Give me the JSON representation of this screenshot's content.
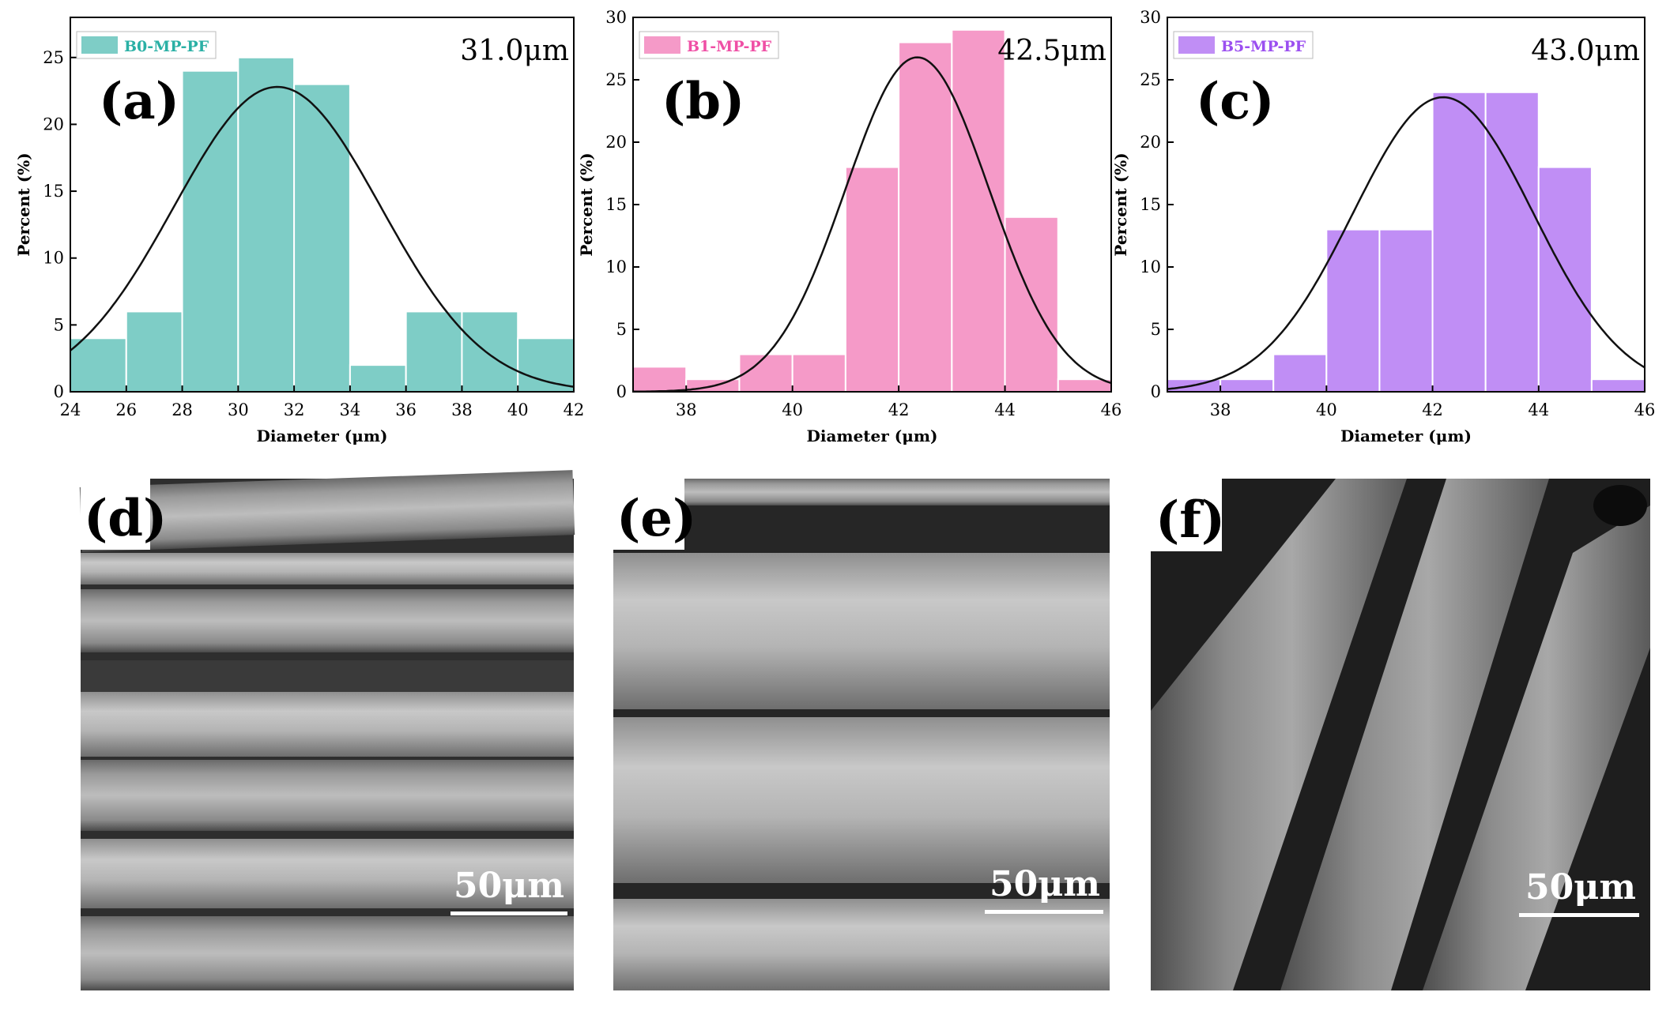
{
  "chart_data": [
    {
      "type": "bar",
      "panel": "(a)",
      "legend": "B0-MP-PF",
      "mean_label": "31.0μm",
      "color": "#7ecdc6",
      "legend_text_color": "#2ab0a5",
      "xlabel": "Diameter (μm)",
      "ylabel": "Percent (%)",
      "xlim": [
        24,
        42
      ],
      "ylim": [
        0,
        28
      ],
      "xticks": [
        24,
        26,
        28,
        30,
        32,
        34,
        36,
        38,
        40,
        42
      ],
      "yticks": [
        0,
        5,
        10,
        15,
        20,
        25
      ],
      "bin_width": 2,
      "bin_starts": [
        24,
        26,
        28,
        30,
        32,
        34,
        36,
        38,
        40
      ],
      "values": [
        4,
        6,
        24,
        25,
        23,
        2,
        6,
        6,
        4
      ],
      "fit_curve": {
        "mean": 31.4,
        "sigma": 3.7,
        "peak": 22.8
      }
    },
    {
      "type": "bar",
      "panel": "(b)",
      "legend": "B1-MP-PF",
      "mean_label": "42.5μm",
      "color": "#f59ac8",
      "legend_text_color": "#ef4fa5",
      "xlabel": "Diameter (μm)",
      "ylabel": "Percent (%)",
      "xlim": [
        37,
        46
      ],
      "ylim": [
        0,
        30
      ],
      "xticks": [
        38,
        40,
        42,
        44,
        46
      ],
      "yticks": [
        0,
        5,
        10,
        15,
        20,
        25,
        30
      ],
      "bin_width": 1,
      "bin_starts": [
        37,
        38,
        39,
        40,
        41,
        42,
        43,
        44,
        45
      ],
      "values": [
        2,
        1,
        3,
        3,
        18,
        28,
        29,
        14,
        1
      ],
      "fit_curve": {
        "mean": 42.35,
        "sigma": 1.35,
        "peak": 26.8
      }
    },
    {
      "type": "bar",
      "panel": "(c)",
      "legend": "B5-MP-PF",
      "mean_label": "43.0μm",
      "color": "#c08ef5",
      "legend_text_color": "#9b4ff0",
      "xlabel": "Diameter (μm)",
      "ylabel": "Percent (%)",
      "xlim": [
        37,
        46
      ],
      "ylim": [
        0,
        30
      ],
      "xticks": [
        38,
        40,
        42,
        44,
        46
      ],
      "yticks": [
        0,
        5,
        10,
        15,
        20,
        25,
        30
      ],
      "bin_width": 1,
      "bin_starts": [
        37,
        38,
        39,
        40,
        41,
        42,
        43,
        44,
        45
      ],
      "values": [
        1,
        1,
        3,
        13,
        13,
        24,
        24,
        18,
        1
      ],
      "fit_curve": {
        "mean": 42.2,
        "sigma": 1.7,
        "peak": 23.6
      }
    }
  ],
  "sem_images": [
    {
      "panel": "(d)",
      "scale_bar": "50μm"
    },
    {
      "panel": "(e)",
      "scale_bar": "50μm"
    },
    {
      "panel": "(f)",
      "scale_bar": "50μm"
    }
  ]
}
